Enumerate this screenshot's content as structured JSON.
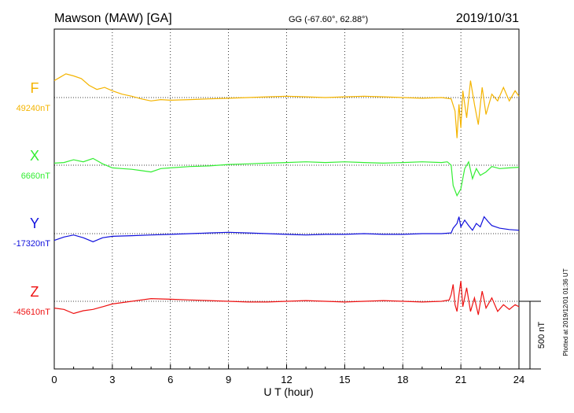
{
  "header": {
    "station": "Mawson (MAW)  [GA]",
    "coords": "GG (-67.60°,  62.88°)",
    "date": "2019/10/31"
  },
  "plotted_note": "Plotted at 2019/12/01 01:36 UT",
  "scale_label": "500 nT",
  "chart_data": {
    "type": "line",
    "xlabel": "U T (hour)",
    "x_ticks": [
      "0",
      "3",
      "6",
      "9",
      "12",
      "15",
      "18",
      "21",
      "24"
    ],
    "xlim": [
      0,
      24
    ],
    "ylabel": "",
    "scale_bar_nT": 500,
    "series": [
      {
        "name": "F",
        "baseline_label": "49240nT",
        "baseline_nT": 49240,
        "color": "#f4b400",
        "points": [
          [
            0,
            25
          ],
          [
            0.3,
            30
          ],
          [
            0.6,
            35
          ],
          [
            1.0,
            32
          ],
          [
            1.4,
            28
          ],
          [
            1.8,
            18
          ],
          [
            2.2,
            12
          ],
          [
            2.6,
            15
          ],
          [
            3.0,
            10
          ],
          [
            3.5,
            5
          ],
          [
            4.0,
            2
          ],
          [
            4.5,
            -2
          ],
          [
            5.0,
            -5
          ],
          [
            5.5,
            -3
          ],
          [
            6.0,
            -4
          ],
          [
            7.0,
            -3
          ],
          [
            8.0,
            -2
          ],
          [
            9.0,
            -1
          ],
          [
            10.0,
            0
          ],
          [
            11.0,
            1
          ],
          [
            12.0,
            2
          ],
          [
            13.0,
            1
          ],
          [
            14.0,
            0
          ],
          [
            15.0,
            1
          ],
          [
            16.0,
            2
          ],
          [
            17.0,
            1
          ],
          [
            18.0,
            0
          ],
          [
            19.0,
            -1
          ],
          [
            20.0,
            0
          ],
          [
            20.5,
            -2
          ],
          [
            20.7,
            -20
          ],
          [
            20.8,
            -60
          ],
          [
            20.9,
            -10
          ],
          [
            21.0,
            -45
          ],
          [
            21.1,
            10
          ],
          [
            21.3,
            -30
          ],
          [
            21.5,
            25
          ],
          [
            21.7,
            -10
          ],
          [
            21.9,
            -40
          ],
          [
            22.1,
            15
          ],
          [
            22.3,
            -25
          ],
          [
            22.6,
            5
          ],
          [
            22.9,
            -5
          ],
          [
            23.2,
            15
          ],
          [
            23.5,
            -5
          ],
          [
            23.8,
            10
          ],
          [
            24.0,
            2
          ]
        ]
      },
      {
        "name": "X",
        "baseline_label": "6660nT",
        "baseline_nT": 6660,
        "color": "#33ee33",
        "points": [
          [
            0,
            3
          ],
          [
            0.5,
            4
          ],
          [
            1.0,
            8
          ],
          [
            1.5,
            5
          ],
          [
            2.0,
            10
          ],
          [
            2.5,
            2
          ],
          [
            3.0,
            -4
          ],
          [
            3.5,
            -5
          ],
          [
            4.0,
            -6
          ],
          [
            4.5,
            -8
          ],
          [
            5.0,
            -10
          ],
          [
            5.5,
            -5
          ],
          [
            6.0,
            -4
          ],
          [
            7.0,
            -2
          ],
          [
            8.0,
            -1
          ],
          [
            9.0,
            1
          ],
          [
            10.0,
            2
          ],
          [
            11.0,
            3
          ],
          [
            12.0,
            4
          ],
          [
            13.0,
            5
          ],
          [
            14.0,
            4
          ],
          [
            15.0,
            5
          ],
          [
            16.0,
            4
          ],
          [
            17.0,
            3
          ],
          [
            18.0,
            4
          ],
          [
            19.0,
            5
          ],
          [
            20.0,
            4
          ],
          [
            20.3,
            5
          ],
          [
            20.5,
            0
          ],
          [
            20.6,
            -30
          ],
          [
            20.8,
            -45
          ],
          [
            21.0,
            -35
          ],
          [
            21.2,
            -5
          ],
          [
            21.4,
            5
          ],
          [
            21.6,
            -20
          ],
          [
            21.8,
            -5
          ],
          [
            22.0,
            -15
          ],
          [
            22.3,
            -10
          ],
          [
            22.6,
            -2
          ],
          [
            23.0,
            -5
          ],
          [
            23.5,
            -4
          ],
          [
            24.0,
            -3
          ]
        ]
      },
      {
        "name": "Y",
        "baseline_label": "-17320nT",
        "baseline_nT": -17320,
        "color": "#1010dd",
        "points": [
          [
            0,
            -10
          ],
          [
            0.5,
            -5
          ],
          [
            1.0,
            -2
          ],
          [
            1.5,
            -6
          ],
          [
            2.0,
            -12
          ],
          [
            2.5,
            -6
          ],
          [
            3.0,
            -4
          ],
          [
            4.0,
            -3
          ],
          [
            5.0,
            -2
          ],
          [
            6.0,
            -1
          ],
          [
            7.0,
            0
          ],
          [
            8.0,
            1
          ],
          [
            9.0,
            2
          ],
          [
            10.0,
            1
          ],
          [
            11.0,
            0
          ],
          [
            12.0,
            -1
          ],
          [
            13.0,
            -2
          ],
          [
            14.0,
            -1
          ],
          [
            15.0,
            -1
          ],
          [
            16.0,
            0
          ],
          [
            17.0,
            -1
          ],
          [
            18.0,
            -1
          ],
          [
            19.0,
            0
          ],
          [
            20.0,
            0
          ],
          [
            20.5,
            1
          ],
          [
            20.6,
            8
          ],
          [
            20.8,
            15
          ],
          [
            20.9,
            25
          ],
          [
            21.0,
            10
          ],
          [
            21.2,
            20
          ],
          [
            21.4,
            12
          ],
          [
            21.6,
            5
          ],
          [
            21.8,
            15
          ],
          [
            22.0,
            10
          ],
          [
            22.2,
            25
          ],
          [
            22.4,
            18
          ],
          [
            22.6,
            12
          ],
          [
            23.0,
            8
          ],
          [
            23.5,
            6
          ],
          [
            24.0,
            5
          ]
        ]
      },
      {
        "name": "Z",
        "baseline_label": "-45610nT",
        "baseline_nT": -45610,
        "color": "#ee1111",
        "points": [
          [
            0,
            -10
          ],
          [
            0.5,
            -12
          ],
          [
            1.0,
            -18
          ],
          [
            1.5,
            -14
          ],
          [
            2.0,
            -12
          ],
          [
            2.5,
            -8
          ],
          [
            3.0,
            -4
          ],
          [
            4.0,
            0
          ],
          [
            5.0,
            4
          ],
          [
            6.0,
            3
          ],
          [
            7.0,
            2
          ],
          [
            8.0,
            1
          ],
          [
            9.0,
            0
          ],
          [
            10.0,
            -1
          ],
          [
            11.0,
            -1
          ],
          [
            12.0,
            0
          ],
          [
            13.0,
            1
          ],
          [
            14.0,
            0
          ],
          [
            15.0,
            -1
          ],
          [
            16.0,
            0
          ],
          [
            17.0,
            1
          ],
          [
            18.0,
            0
          ],
          [
            19.0,
            -1
          ],
          [
            20.0,
            0
          ],
          [
            20.4,
            2
          ],
          [
            20.5,
            10
          ],
          [
            20.6,
            25
          ],
          [
            20.7,
            -5
          ],
          [
            20.8,
            -15
          ],
          [
            20.9,
            10
          ],
          [
            21.0,
            30
          ],
          [
            21.1,
            -8
          ],
          [
            21.3,
            20
          ],
          [
            21.5,
            -15
          ],
          [
            21.7,
            5
          ],
          [
            21.9,
            -20
          ],
          [
            22.1,
            15
          ],
          [
            22.3,
            -10
          ],
          [
            22.6,
            5
          ],
          [
            22.9,
            -15
          ],
          [
            23.2,
            -5
          ],
          [
            23.5,
            -12
          ],
          [
            23.8,
            -5
          ],
          [
            24.0,
            -8
          ]
        ]
      }
    ]
  }
}
